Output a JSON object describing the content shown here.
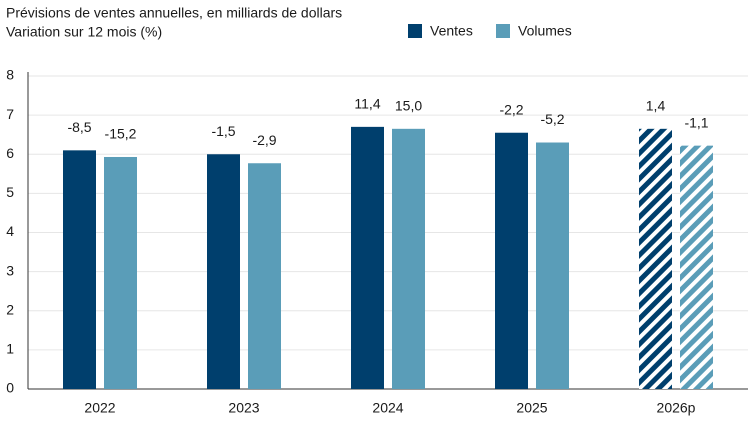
{
  "chart_data": {
    "type": "bar",
    "title": "Prévisions de ventes annuelles, en milliards de dollars",
    "subtitle": "Variation sur 12 mois (%)",
    "categories": [
      "2022",
      "2023",
      "2024",
      "2025",
      "2026p"
    ],
    "series": [
      {
        "name": "Ventes",
        "color": "#003f6d",
        "values": [
          6.1,
          6.0,
          6.7,
          6.55,
          6.65
        ],
        "change_labels": [
          "-8,5",
          "-1,5",
          "11,4",
          "-2,2",
          "1,4"
        ]
      },
      {
        "name": "Volumes",
        "color": "#5a9db8",
        "values": [
          5.93,
          5.77,
          6.65,
          6.3,
          6.22
        ],
        "change_labels": [
          "-15,2",
          "-2,9",
          "15,0",
          "-5,2",
          "-1,1"
        ]
      }
    ],
    "hatched": [
      false,
      false,
      false,
      false,
      true
    ],
    "ylim": [
      0,
      8
    ],
    "yticks": [
      0,
      1,
      2,
      3,
      4,
      5,
      6,
      7,
      8
    ],
    "grid": true
  }
}
